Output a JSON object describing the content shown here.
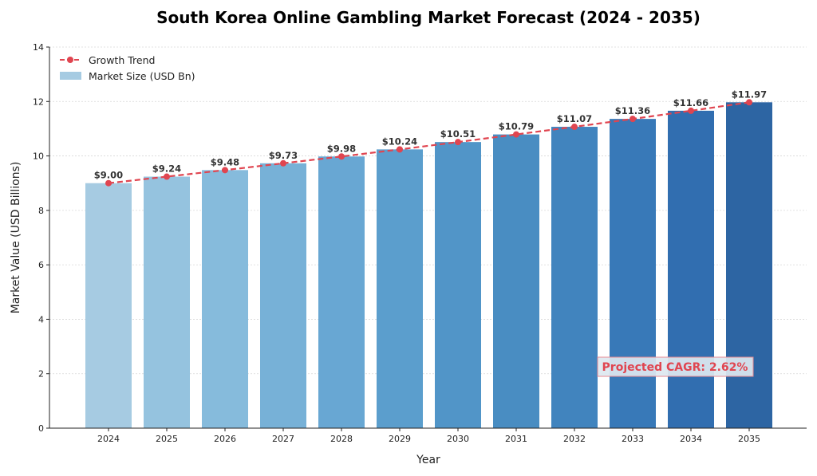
{
  "chart_data": {
    "type": "bar",
    "title": "South Korea Online Gambling Market Forecast (2024 - 2035)",
    "xlabel": "Year",
    "ylabel": "Market Value (USD Billions)",
    "ylim": [
      0,
      14
    ],
    "yticks": [
      0,
      2,
      4,
      6,
      8,
      10,
      12,
      14
    ],
    "grid": true,
    "legend_position": "upper left",
    "categories": [
      "2024",
      "2025",
      "2026",
      "2027",
      "2028",
      "2029",
      "2030",
      "2031",
      "2032",
      "2033",
      "2034",
      "2035"
    ],
    "series": [
      {
        "name": "Market Size (USD Bn)",
        "type": "bar",
        "values": [
          9.0,
          9.24,
          9.48,
          9.73,
          9.98,
          10.24,
          10.51,
          10.79,
          11.07,
          11.36,
          11.66,
          11.97
        ],
        "labels": [
          "$9.00",
          "$9.24",
          "$9.48",
          "$9.73",
          "$9.98",
          "$10.24",
          "$10.51",
          "$10.79",
          "$11.07",
          "$11.36",
          "$11.66",
          "$11.97"
        ]
      },
      {
        "name": "Growth Trend",
        "type": "line",
        "style": "dashed with circle markers",
        "values": [
          9.0,
          9.24,
          9.48,
          9.73,
          9.98,
          10.24,
          10.51,
          10.79,
          11.07,
          11.36,
          11.66,
          11.97
        ]
      }
    ],
    "annotations": [
      {
        "text": "Projected CAGR: 2.62%",
        "position": "lower right"
      }
    ]
  },
  "colors": {
    "trend_line": "#e04550",
    "bar_gradient": [
      "#a6cbe2",
      "#95c3df",
      "#86bbdc",
      "#77b1d7",
      "#68a7d3",
      "#5b9ecd",
      "#5195c8",
      "#498dc2",
      "#4184be",
      "#3879b8",
      "#316eb0",
      "#2d65a3"
    ],
    "cagr_box_bg": "#dde8f0",
    "cagr_box_border": "#e88a92"
  },
  "legend": {
    "trend_label": "Growth Trend",
    "bar_label": "Market Size (USD Bn)"
  },
  "cagr_label": "Projected CAGR: 2.62%"
}
